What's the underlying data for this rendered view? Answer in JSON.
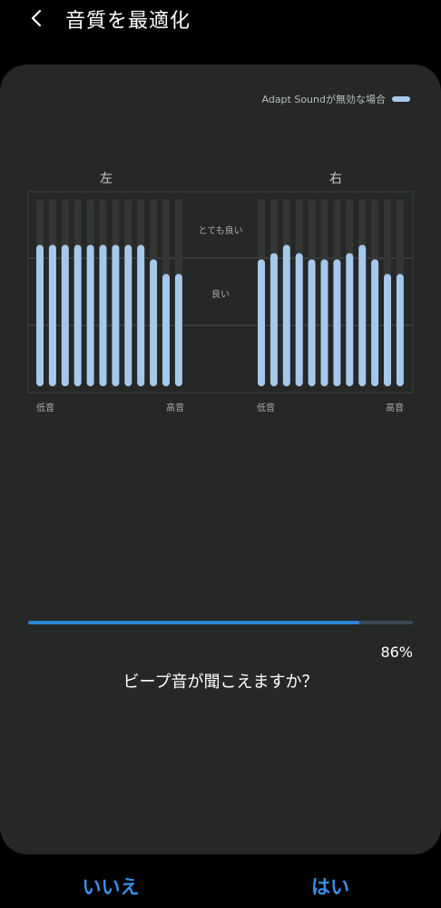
{
  "header": {
    "title": "音質を最適化",
    "back_icon": "chevron-left-icon"
  },
  "legend": {
    "label": "Adapt Soundが無効な場合",
    "color": "#a5c8ec"
  },
  "chart_data": [
    {
      "type": "bar",
      "title": "左",
      "categories": [
        "1",
        "2",
        "3",
        "4",
        "5",
        "6",
        "7",
        "8",
        "9",
        "10",
        "11",
        "12"
      ],
      "values": [
        68,
        68,
        68,
        68,
        68,
        68,
        68,
        68,
        68,
        61,
        54,
        54
      ],
      "ylim": [
        0,
        90
      ],
      "zones": [
        "とても良い",
        "良い"
      ],
      "xlabel_left": "低音",
      "xlabel_right": "高音",
      "bar_color": "#a5c8ec",
      "track_color": "#333634"
    },
    {
      "type": "bar",
      "title": "右",
      "categories": [
        "1",
        "2",
        "3",
        "4",
        "5",
        "6",
        "7",
        "8",
        "9",
        "10",
        "11",
        "12"
      ],
      "values": [
        61,
        64,
        68,
        64,
        61,
        61,
        61,
        64,
        68,
        61,
        54,
        54
      ],
      "ylim": [
        0,
        90
      ],
      "xlabel_left": "低音",
      "xlabel_right": "高音",
      "bar_color": "#a5c8ec",
      "track_color": "#333634"
    }
  ],
  "progress": {
    "value": 0.86,
    "label": "86%",
    "fill_color": "#2a87d8",
    "track_color": "#3b4a58"
  },
  "question": "ビープ音が聞こえますか？",
  "buttons": {
    "no": "いいえ",
    "yes": "はい"
  }
}
